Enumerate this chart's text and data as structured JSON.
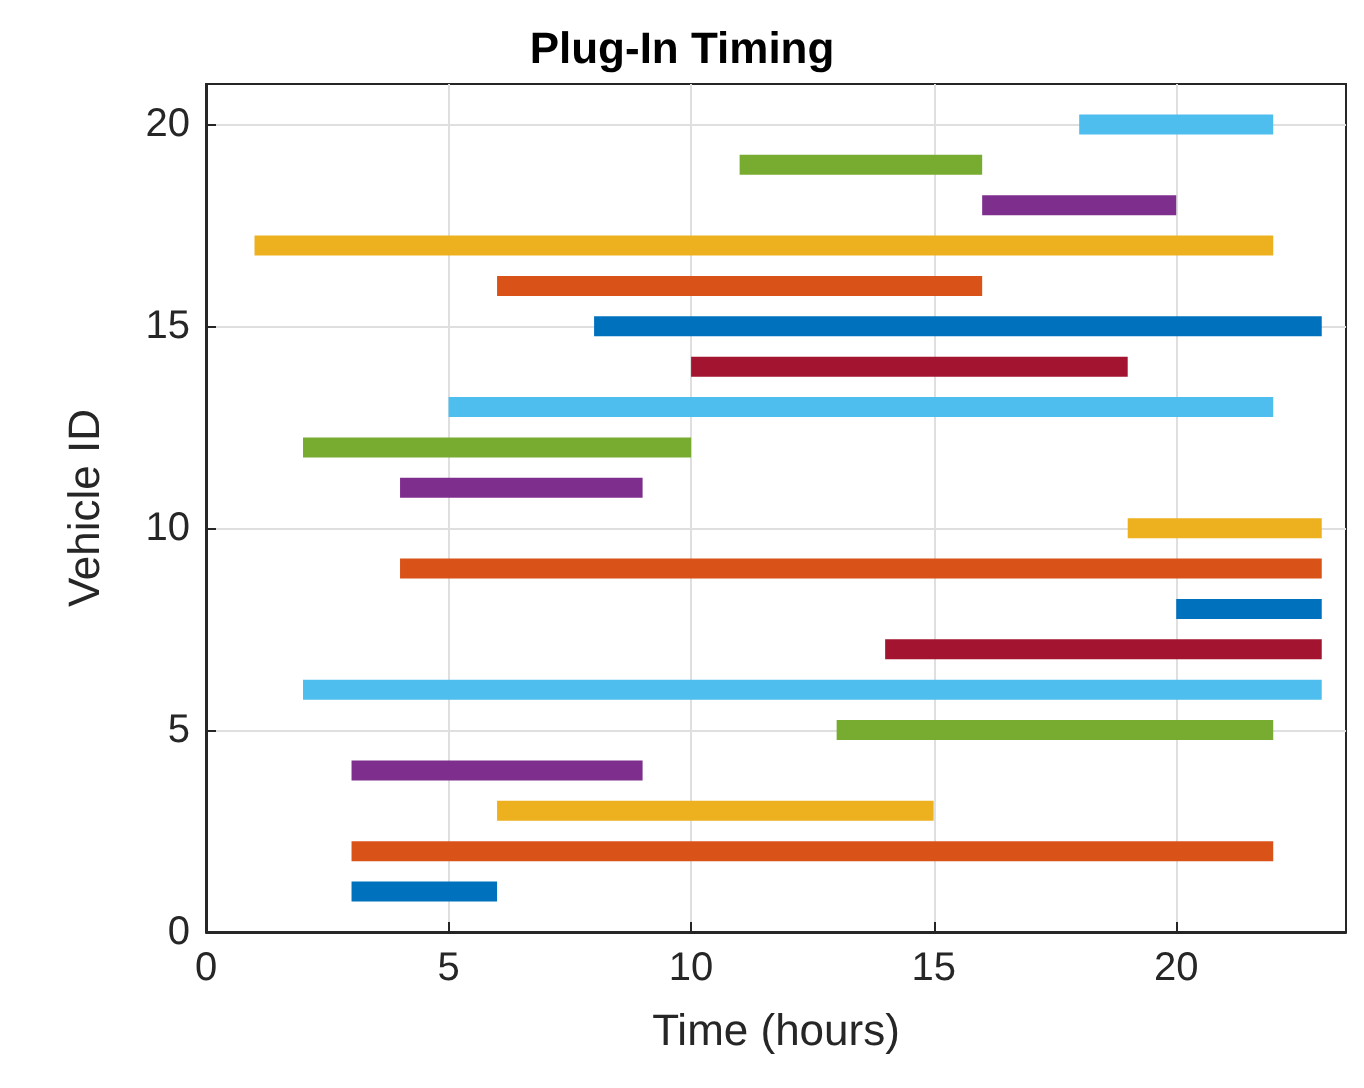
{
  "chart_data": {
    "type": "line",
    "title": "Plug-In Timing",
    "xlabel": "Time (hours)",
    "ylabel": "Vehicle ID",
    "xlim": [
      0,
      23.5
    ],
    "xticks": [
      0,
      5,
      10,
      15,
      20
    ],
    "ylim": [
      0,
      21
    ],
    "yticks": [
      0,
      5,
      10,
      15,
      20
    ],
    "grid": true,
    "marker": "none",
    "line_style": "solid",
    "series": [
      {
        "color": "#0072bd",
        "x": [
          3,
          6
        ],
        "values": [
          1,
          1
        ]
      },
      {
        "color": "#d95319",
        "x": [
          3,
          22
        ],
        "values": [
          2,
          2
        ]
      },
      {
        "color": "#edb120",
        "x": [
          6,
          15
        ],
        "values": [
          3,
          3
        ]
      },
      {
        "color": "#7e2f8e",
        "x": [
          3,
          9
        ],
        "values": [
          4,
          4
        ]
      },
      {
        "color": "#77ac30",
        "x": [
          13,
          22
        ],
        "values": [
          5,
          5
        ]
      },
      {
        "color": "#4dbeee",
        "x": [
          2,
          23
        ],
        "values": [
          6,
          6
        ]
      },
      {
        "color": "#a2142f",
        "x": [
          14,
          23
        ],
        "values": [
          7,
          7
        ]
      },
      {
        "color": "#0072bd",
        "x": [
          20,
          23
        ],
        "values": [
          8,
          8
        ]
      },
      {
        "color": "#d95319",
        "x": [
          4,
          23
        ],
        "values": [
          9,
          9
        ]
      },
      {
        "color": "#edb120",
        "x": [
          19,
          23
        ],
        "values": [
          10,
          10
        ]
      },
      {
        "color": "#7e2f8e",
        "x": [
          4,
          9
        ],
        "values": [
          11,
          11
        ]
      },
      {
        "color": "#77ac30",
        "x": [
          2,
          10
        ],
        "values": [
          12,
          12
        ]
      },
      {
        "color": "#4dbeee",
        "x": [
          5,
          22
        ],
        "values": [
          13,
          13
        ]
      },
      {
        "color": "#a2142f",
        "x": [
          10,
          19
        ],
        "values": [
          14,
          14
        ]
      },
      {
        "color": "#0072bd",
        "x": [
          8,
          23
        ],
        "values": [
          15,
          15
        ]
      },
      {
        "color": "#d95319",
        "x": [
          6,
          16
        ],
        "values": [
          16,
          16
        ]
      },
      {
        "color": "#edb120",
        "x": [
          1,
          22
        ],
        "values": [
          17,
          17
        ]
      },
      {
        "color": "#7e2f8e",
        "x": [
          16,
          20
        ],
        "values": [
          18,
          18
        ]
      },
      {
        "color": "#77ac30",
        "x": [
          11,
          16
        ],
        "values": [
          19,
          19
        ]
      },
      {
        "color": "#4dbeee",
        "x": [
          18,
          22
        ],
        "values": [
          20,
          20
        ]
      }
    ]
  }
}
